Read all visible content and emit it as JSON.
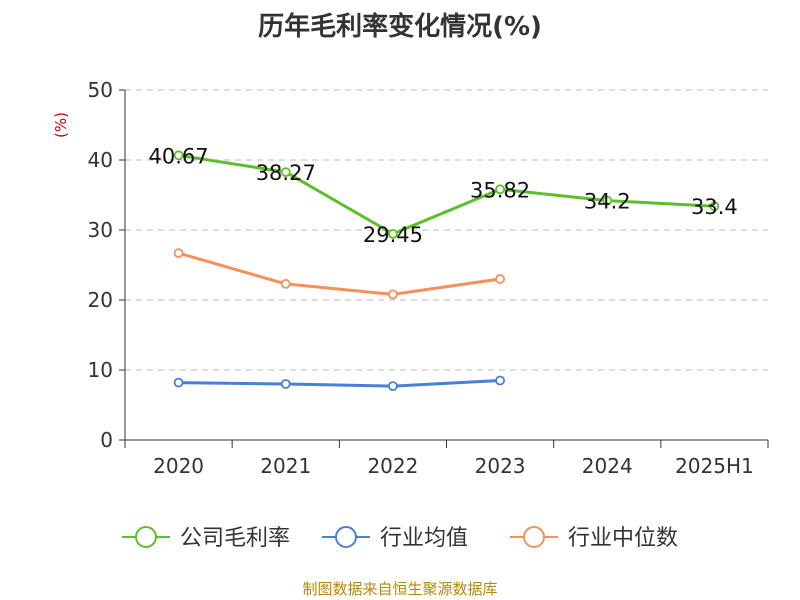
{
  "chart_data": {
    "type": "line",
    "title": "历年毛利率变化情况(%)",
    "ylabel": "(%)",
    "xlabel": "",
    "categories": [
      "2020",
      "2021",
      "2022",
      "2023",
      "2024",
      "2025H1"
    ],
    "ylim": [
      0,
      50
    ],
    "yticks": [
      0,
      10,
      20,
      30,
      40,
      50
    ],
    "grid": true,
    "legend_position": "bottom",
    "series": [
      {
        "name": "公司毛利率",
        "color": "#5cbf2a",
        "values": [
          40.67,
          38.27,
          29.45,
          35.82,
          34.2,
          33.4
        ],
        "labels": [
          "40.67",
          "38.27",
          "29.45",
          "35.82",
          "34.2",
          "33.4"
        ],
        "show_labels": true
      },
      {
        "name": "行业均值",
        "color": "#4a7fd8",
        "values": [
          8.2,
          8.0,
          7.7,
          8.5,
          null,
          null
        ],
        "show_labels": false
      },
      {
        "name": "行业中位数",
        "color": "#f5905a",
        "values": [
          26.7,
          22.3,
          20.8,
          23.0,
          null,
          null
        ],
        "show_labels": false
      }
    ]
  },
  "source_text": "制图数据来自恒生聚源数据库"
}
